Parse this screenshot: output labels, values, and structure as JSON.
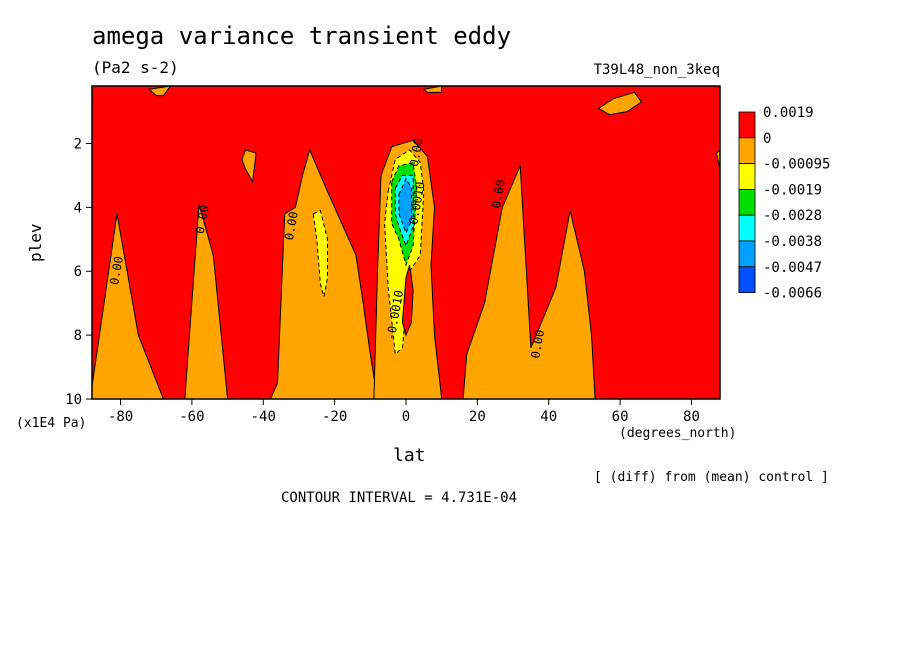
{
  "title": "amega variance transient eddy",
  "units_label": "(Pa2 s-2)",
  "run_label": "T39L48_non_3keq",
  "xlabel": "lat",
  "ylabel": "plev",
  "x_unit": "(degrees_north)",
  "y_unit": "(x1E4 Pa)",
  "diff_note": "[ (diff) from (mean) control ]",
  "contour_note": "CONTOUR INTERVAL = 4.731E-04",
  "chart_data": {
    "type": "heatmap",
    "title": "amega variance transient eddy",
    "xlabel": "lat",
    "ylabel": "plev",
    "xlim": [
      -88,
      88
    ],
    "ylim": [
      10,
      0.2
    ],
    "x_ticks": [
      -80,
      -60,
      -40,
      -20,
      0,
      20,
      40,
      60,
      80
    ],
    "y_ticks": [
      2,
      4,
      6,
      8,
      10
    ],
    "legend": {
      "position": "right",
      "levels": [
        {
          "label": "0.0019",
          "color": "#ff0000"
        },
        {
          "label": "0",
          "color": "#ffa500"
        },
        {
          "label": "-0.00095",
          "color": "#ffff00"
        },
        {
          "label": "-0.0019",
          "color": "#00e000"
        },
        {
          "label": "-0.0028",
          "color": "#00ffff"
        },
        {
          "label": "-0.0038",
          "color": "#00a0ff"
        },
        {
          "label": "-0.0047",
          "color": "#0050ff"
        },
        {
          "label": "-0.0066",
          "color": ""
        }
      ]
    },
    "contour_labels": [
      {
        "text": "0.00",
        "x": -80,
        "y": 6.0
      },
      {
        "text": "0.00",
        "x": -56,
        "y": 4.4
      },
      {
        "text": "0.00",
        "x": -31,
        "y": 4.6
      },
      {
        "text": "0.00",
        "x": 4,
        "y": 2.3
      },
      {
        "text": "0.00",
        "x": 27,
        "y": 3.6
      },
      {
        "text": "0.00",
        "x": 38,
        "y": 8.3
      },
      {
        "text": "-0.0010",
        "x": 4,
        "y": 4.0
      },
      {
        "text": "-0.0010",
        "x": -2,
        "y": 7.4
      }
    ],
    "regions": [
      {
        "value": "0",
        "color": "#ffa500",
        "points": [
          [
            -88,
            9.6
          ],
          [
            -81,
            4.2
          ],
          [
            -75,
            8.0
          ],
          [
            -68,
            10
          ],
          [
            -88,
            10
          ]
        ]
      },
      {
        "value": "0",
        "color": "#ffa500",
        "points": [
          [
            -62,
            10
          ],
          [
            -58,
            3.9
          ],
          [
            -54,
            5.5
          ],
          [
            -50,
            10
          ]
        ]
      },
      {
        "value": "0",
        "color": "#ffa500",
        "points": [
          [
            -36,
            9.5
          ],
          [
            -34,
            4.2
          ],
          [
            -31,
            4.0
          ],
          [
            -29,
            3.0
          ],
          [
            -27,
            2.2
          ],
          [
            -22,
            3.5
          ],
          [
            -14,
            5.5
          ],
          [
            -12,
            7.0
          ],
          [
            -10,
            8.6
          ],
          [
            -8,
            10
          ],
          [
            -38,
            10
          ]
        ]
      },
      {
        "value": "0",
        "color": "#ffa500",
        "points": [
          [
            -9,
            10
          ],
          [
            -8,
            6.0
          ],
          [
            -7,
            3.0
          ],
          [
            -4,
            2.1
          ],
          [
            2,
            1.9
          ],
          [
            6,
            2.4
          ],
          [
            8,
            4.0
          ],
          [
            7,
            5.8
          ],
          [
            8,
            8.0
          ],
          [
            10,
            10
          ]
        ]
      },
      {
        "value": "0",
        "color": "#ffa500",
        "points": [
          [
            16,
            10
          ],
          [
            17,
            8.6
          ],
          [
            22,
            7.0
          ],
          [
            27,
            4.0
          ],
          [
            32,
            2.7
          ],
          [
            35,
            8.4
          ],
          [
            42,
            6.5
          ],
          [
            46,
            4.1
          ],
          [
            50,
            6.0
          ],
          [
            52,
            8.0
          ],
          [
            53,
            10
          ]
        ]
      },
      {
        "value": "0",
        "color": "#ffa500",
        "points": [
          [
            87,
            2.3
          ],
          [
            88,
            2.2
          ],
          [
            88,
            2.8
          ]
        ]
      },
      {
        "value": "0",
        "color": "#ffa500",
        "points": [
          [
            -46,
            2.5
          ],
          [
            -45,
            2.2
          ],
          [
            -42,
            2.3
          ],
          [
            -43,
            3.2
          ],
          [
            -45,
            2.8
          ]
        ]
      },
      {
        "value": "0",
        "color": "#ffa500",
        "points": [
          [
            54,
            0.9
          ],
          [
            58,
            0.6
          ],
          [
            64,
            0.4
          ],
          [
            66,
            0.7
          ],
          [
            62,
            1.0
          ],
          [
            57,
            1.1
          ]
        ]
      },
      {
        "value": "0",
        "color": "#ffa500",
        "points": [
          [
            -72,
            0.3
          ],
          [
            -66,
            0.2
          ],
          [
            -68,
            0.5
          ],
          [
            -70,
            0.5
          ]
        ]
      },
      {
        "value": "0",
        "color": "#ffa500",
        "points": [
          [
            5,
            0.3
          ],
          [
            10,
            0.2
          ],
          [
            10,
            0.4
          ],
          [
            6,
            0.4
          ]
        ]
      },
      {
        "value": "-0.00095",
        "color": "#ffff00",
        "points": [
          [
            -26,
            4.2
          ],
          [
            -24,
            4.1
          ],
          [
            -22,
            5.0
          ],
          [
            -22,
            6.2
          ],
          [
            -23,
            6.8
          ],
          [
            -24,
            6.4
          ],
          [
            -25,
            5.0
          ]
        ]
      },
      {
        "value": "-0.00095",
        "color": "#ffff00",
        "points": [
          [
            -5,
            3.5
          ],
          [
            -3,
            2.5
          ],
          [
            1,
            2.2
          ],
          [
            4,
            2.6
          ],
          [
            5,
            3.5
          ],
          [
            4,
            5.5
          ],
          [
            1,
            6.0
          ],
          [
            0,
            7.2
          ],
          [
            -1,
            8.4
          ],
          [
            -3,
            8.6
          ],
          [
            -5,
            6.5
          ],
          [
            -6,
            4.5
          ]
        ]
      },
      {
        "value": "-0.0019",
        "color": "#00e000",
        "points": [
          [
            -4,
            3.2
          ],
          [
            -2,
            2.7
          ],
          [
            2,
            2.6
          ],
          [
            3,
            3.4
          ],
          [
            2,
            5.2
          ],
          [
            0,
            5.8
          ],
          [
            -2,
            5.0
          ],
          [
            -4,
            4.5
          ]
        ]
      },
      {
        "value": "-0.0028",
        "color": "#00ffff",
        "points": [
          [
            -3,
            3.4
          ],
          [
            -1,
            3.0
          ],
          [
            2,
            3.0
          ],
          [
            2,
            4.6
          ],
          [
            0,
            5.2
          ],
          [
            -2,
            4.6
          ],
          [
            -3,
            4.2
          ]
        ]
      },
      {
        "value": "-0.0038",
        "color": "#00a0ff",
        "points": [
          [
            -2,
            3.6
          ],
          [
            0,
            3.1
          ],
          [
            1.6,
            3.4
          ],
          [
            1.6,
            4.4
          ],
          [
            0,
            4.8
          ],
          [
            -2,
            4.2
          ]
        ]
      },
      {
        "value": "0.0019",
        "color": "#ff0000",
        "points": [
          [
            -1,
            7.6
          ],
          [
            0,
            6.2
          ],
          [
            1,
            5.8
          ],
          [
            2,
            6.6
          ],
          [
            1.5,
            7.6
          ],
          [
            0,
            8.0
          ]
        ]
      }
    ]
  }
}
